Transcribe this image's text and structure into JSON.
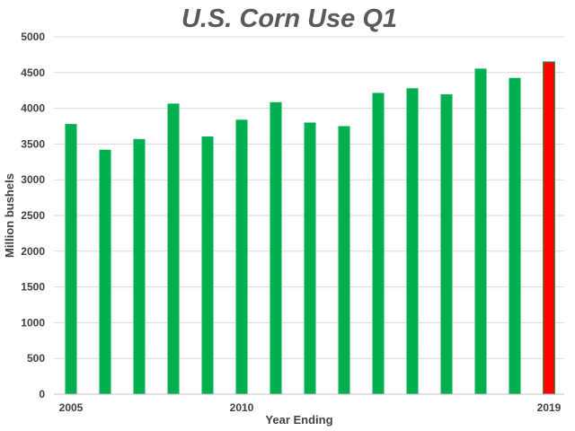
{
  "chart_data": {
    "type": "bar",
    "title": "U.S. Corn Use Q1",
    "xlabel": "Year Ending",
    "ylabel": "Million bushels",
    "categories": [
      "2005",
      "2006",
      "2007",
      "2008",
      "2009",
      "2010",
      "2011",
      "2012",
      "2013",
      "2014",
      "2015",
      "2016",
      "2017",
      "2018",
      "2019"
    ],
    "x_tick_labels": [
      "2005",
      "2010",
      "2019"
    ],
    "values": [
      3780,
      3420,
      3570,
      4065,
      3605,
      3840,
      4085,
      3800,
      3750,
      4215,
      4280,
      4195,
      4555,
      4425,
      4650
    ],
    "highlight_category": "2019",
    "colors": {
      "default": "#00b050",
      "highlight": "#ff0000",
      "highlight_edge": "#00b050"
    },
    "ylim": [
      0,
      5000
    ],
    "y_ticks": [
      0,
      500,
      1000,
      1500,
      2000,
      2500,
      3000,
      3500,
      4000,
      4500,
      5000
    ],
    "grid": true,
    "legend": "none"
  }
}
